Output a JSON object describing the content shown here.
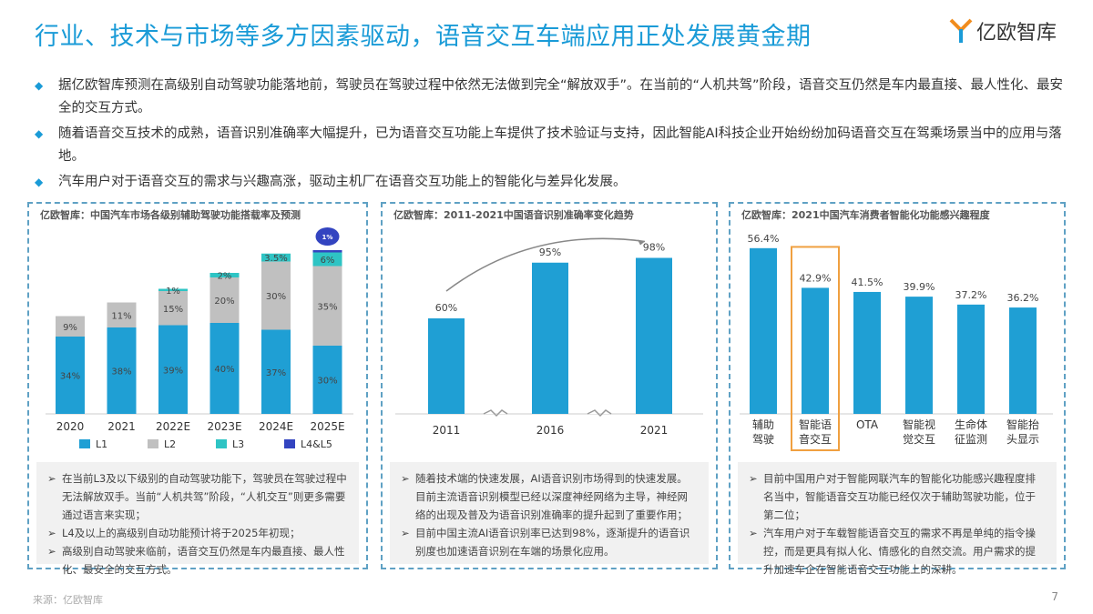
{
  "title": "行业、技术与市场等多方因素驱动，语音交互车端应用正处发展黄金期",
  "logo": {
    "text": "亿欧智库"
  },
  "bullets": [
    "据亿欧智库预测在高级别自动驾驶功能落地前，驾驶员在驾驶过程中依然无法做到完全“解放双手”。在当前的“人机共驾”阶段，语音交互仍然是车内最直接、最人性化、最安全的交互方式。",
    "随着语音交互技术的成熟，语音识别准确率大幅提升，已为语音交互功能上车提供了技术验证与支持，因此智能AI科技企业开始纷纷加码语音交互在驾乘场景当中的应用与落地。",
    "汽车用户对于语音交互的需求与兴趣高涨，驱动主机厂在语音交互功能上的智能化与差异化发展。"
  ],
  "colors": {
    "accent": "#1a9bd7",
    "L1": "#1f9fd4",
    "L2": "#c0c0c0",
    "L3": "#2ec4c4",
    "L45": "#3344c0",
    "highlight": "#f0a040"
  },
  "chart_data": [
    {
      "type": "bar",
      "stacked": true,
      "title": "亿欧智库：中国汽车市场各级别辅助驾驶功能搭载率及预测",
      "categories": [
        "2020",
        "2021",
        "2022E",
        "2023E",
        "2024E",
        "2025E"
      ],
      "series": [
        {
          "name": "L1",
          "values": [
            34,
            38,
            39,
            40,
            37,
            30
          ],
          "labels": [
            "34%",
            "38%",
            "39%",
            "40%",
            "37%",
            "30%"
          ]
        },
        {
          "name": "L2",
          "values": [
            9,
            11,
            15,
            20,
            30,
            35
          ],
          "labels": [
            "9%",
            "11%",
            "15%",
            "20%",
            "30%",
            "35%"
          ]
        },
        {
          "name": "L3",
          "values": [
            0,
            0,
            1,
            2,
            3.5,
            6
          ],
          "labels": [
            "",
            "",
            "1%",
            "2%",
            "3.5%",
            "6%"
          ]
        },
        {
          "name": "L4&L5",
          "values": [
            0,
            0,
            0,
            0,
            0,
            1
          ],
          "labels": [
            "",
            "",
            "",
            "",
            "",
            "1%"
          ]
        }
      ],
      "legend": "bottom"
    },
    {
      "type": "bar",
      "title": "亿欧智库：2011-2021中国语音识别准确率变化趋势",
      "categories": [
        "2011",
        "2016",
        "2021"
      ],
      "values": [
        60,
        95,
        98
      ],
      "labels": [
        "60%",
        "95%",
        "98%"
      ],
      "axis_break": true,
      "trend_arrow": true
    },
    {
      "type": "bar",
      "title": "亿欧智库：2021中国汽车消费者智能化功能感兴趣程度",
      "categories": [
        "辅助驾驶",
        "智能语音交互",
        "OTA",
        "智能视觉交互",
        "生命体征监测",
        "智能抬头显示"
      ],
      "category_lines": [
        [
          "辅助",
          "驾驶"
        ],
        [
          "智能语",
          "音交互"
        ],
        [
          "OTA",
          ""
        ],
        [
          "智能视",
          "觉交互"
        ],
        [
          "生命体",
          "征监测"
        ],
        [
          "智能抬",
          "头显示"
        ]
      ],
      "values": [
        56.4,
        42.9,
        41.5,
        39.9,
        37.2,
        36.2
      ],
      "labels": [
        "56.4%",
        "42.9%",
        "41.5%",
        "39.9%",
        "37.2%",
        "36.2%"
      ],
      "highlight": "智能语音交互"
    }
  ],
  "notes": [
    [
      "在当前L3及以下级别的自动驾驶功能下，驾驶员在驾驶过程中无法解放双手。当前“人机共驾”阶段，“人机交互”则更多需要通过语言来实现；",
      "L4及以上的高级别自动功能预计将于2025年初现；",
      "高级别自动驾驶来临前，语音交互仍然是车内最直接、最人性化、最安全的交互方式。"
    ],
    [
      "随着技术端的快速发展，AI语音识别市场得到的快速发展。目前主流语音识别模型已经以深度神经网络为主导，神经网络的出现及普及为语音识别准确率的提升起到了重要作用；",
      "目前中国主流AI语音识别率已达到98%，逐渐提升的语音识别度也加速语音识别在车端的场景化应用。"
    ],
    [
      "目前中国用户对于智能网联汽车的智能化功能感兴趣程度排名当中，智能语音交互功能已经仅次于辅助驾驶功能，位于第二位；",
      "汽车用户对于车载智能语音交互的需求不再是单纯的指令操控，而是更具有拟人化、情感化的自然交流。用户需求的提升加速车企在智能语音交互功能上的深耕。"
    ]
  ],
  "source": "来源：亿欧智库",
  "page_number": "7"
}
